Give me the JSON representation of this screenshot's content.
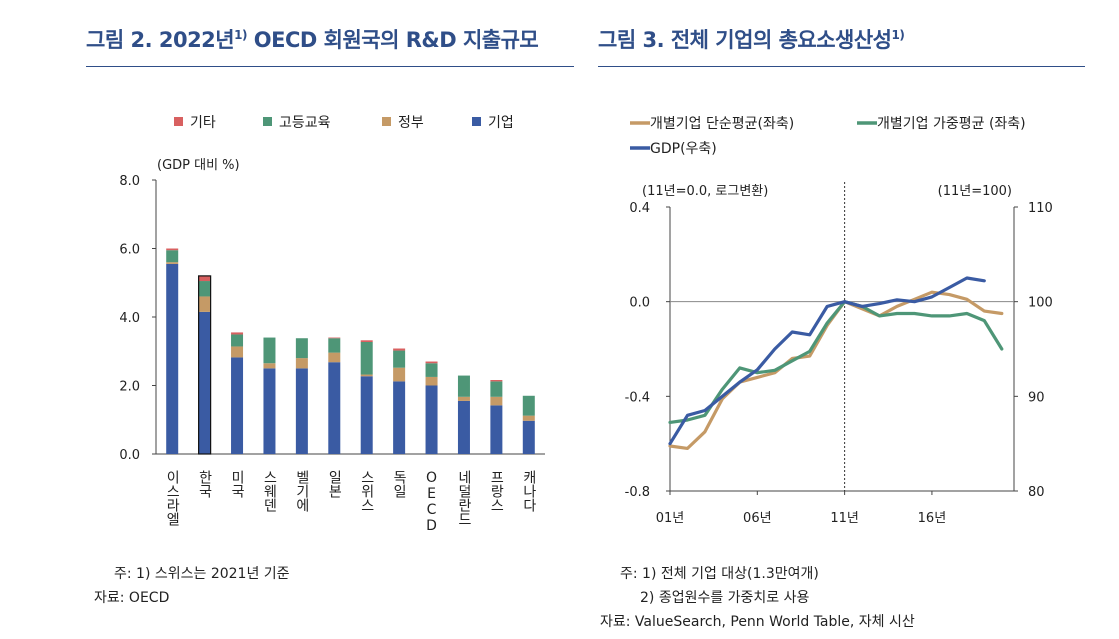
{
  "charts": [
    {
      "title": "그림 2. 2022년",
      "title_sup": "1)",
      "title_tail": " OECD 회원국의 R&D 지출규모",
      "unit_label": "(GDP 대비 %)",
      "notes": [
        "주: 1) 스위스는 2021년 기준",
        "자료: OECD"
      ]
    },
    {
      "title": "그림 3. 전체 기업의 총요소생산성",
      "title_sup": "1)",
      "left_axis_note": "(11년=0.0, 로그변환)",
      "right_axis_note": "(11년=100)",
      "notes": [
        "주: 1) 전체 기업 대상(1.3만여개)",
        "2) 종업원수를 가중치로 사용",
        "자료: ValueSearch, Penn World Table, 자체 시산"
      ]
    }
  ],
  "chart_data": [
    {
      "type": "bar",
      "stacked": true,
      "title": "그림 2. 2022년1) OECD 회원국의 R&D 지출규모",
      "ylabel": "(GDP 대비 %)",
      "ylim": [
        0,
        8
      ],
      "yticks": [
        "0.0",
        "2.0",
        "4.0",
        "6.0",
        "8.0"
      ],
      "categories": [
        "이스라엘",
        "한국",
        "미국",
        "스웨덴",
        "벨기에",
        "일본",
        "스위스",
        "독일",
        "OECD",
        "네덜란드",
        "프랑스",
        "캐나다"
      ],
      "highlight_category": "한국",
      "legend_position": "top",
      "series": [
        {
          "name": "기업",
          "color": "#3a5ba3",
          "values": [
            5.55,
            4.15,
            2.82,
            2.5,
            2.5,
            2.68,
            2.27,
            2.12,
            2.0,
            1.55,
            1.42,
            0.97
          ]
        },
        {
          "name": "정부",
          "color": "#c59a66",
          "values": [
            0.05,
            0.45,
            0.32,
            0.15,
            0.3,
            0.28,
            0.05,
            0.4,
            0.25,
            0.12,
            0.25,
            0.15
          ]
        },
        {
          "name": "고등교육",
          "color": "#4e9677",
          "values": [
            0.35,
            0.45,
            0.35,
            0.75,
            0.58,
            0.42,
            0.95,
            0.5,
            0.4,
            0.62,
            0.45,
            0.58
          ]
        },
        {
          "name": "기타",
          "color": "#d86060",
          "values": [
            0.05,
            0.15,
            0.06,
            0.0,
            0.0,
            0.02,
            0.05,
            0.06,
            0.05,
            0.0,
            0.04,
            0.0
          ]
        }
      ]
    },
    {
      "type": "line",
      "title": "그림 3. 전체 기업의 총요소생산성1)",
      "x": [
        2001,
        2002,
        2003,
        2004,
        2005,
        2006,
        2007,
        2008,
        2009,
        2010,
        2011,
        2012,
        2013,
        2014,
        2015,
        2016,
        2017,
        2018,
        2019,
        2020
      ],
      "xticks": [
        "01년",
        "06년",
        "11년",
        "16년"
      ],
      "xtick_years": [
        2001,
        2006,
        2011,
        2016
      ],
      "vline_year": 2011,
      "ylim_left": [
        -0.8,
        0.4
      ],
      "yticks_left": [
        "-0.8",
        "-0.4",
        "0.0",
        "0.4"
      ],
      "ylim_right": [
        80,
        110
      ],
      "yticks_right": [
        "80",
        "90",
        "100",
        "110"
      ],
      "legend_position": "top",
      "series": [
        {
          "name": "개별기업 단순평균(좌축)",
          "axis": "left",
          "color": "#c59a66",
          "values": [
            -0.61,
            -0.62,
            -0.55,
            -0.41,
            -0.34,
            -0.32,
            -0.3,
            -0.24,
            -0.23,
            -0.1,
            0.0,
            -0.03,
            -0.06,
            -0.02,
            0.01,
            0.04,
            0.03,
            0.01,
            -0.04,
            -0.05
          ]
        },
        {
          "name": "개별기업 가중평균 (좌축)",
          "axis": "left",
          "color": "#4e9677",
          "values": [
            -0.51,
            -0.5,
            -0.48,
            -0.37,
            -0.28,
            -0.3,
            -0.29,
            -0.25,
            -0.21,
            -0.09,
            0.0,
            -0.02,
            -0.06,
            -0.05,
            -0.05,
            -0.06,
            -0.06,
            -0.05,
            -0.08,
            -0.2
          ]
        },
        {
          "name": "GDP(우축)",
          "axis": "right",
          "color": "#3a5ba3",
          "values": [
            85.0,
            88.0,
            88.5,
            90.0,
            91.5,
            92.8,
            95.0,
            96.8,
            96.5,
            99.5,
            100.0,
            99.5,
            99.8,
            100.2,
            100.0,
            100.5,
            101.5,
            102.5,
            102.2,
            null
          ]
        }
      ]
    }
  ]
}
